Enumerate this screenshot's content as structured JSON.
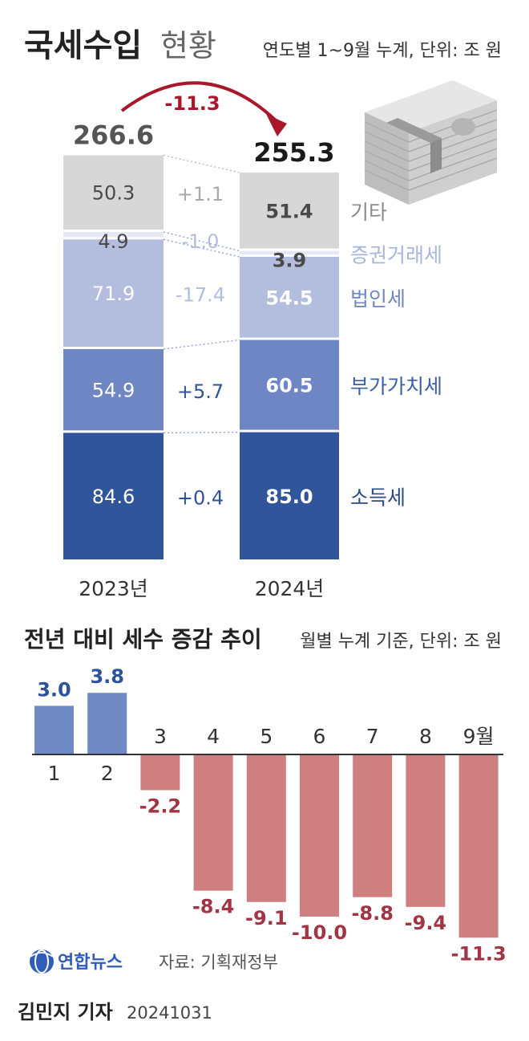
{
  "header": {
    "title_bold": "국세수입",
    "title_light": "현황",
    "subtitle": "연도별 1~9월 누계, 단위: 조 원"
  },
  "colors": {
    "other": "#d7d7d7",
    "securities": "#e3e8f4",
    "corporate": "#b3bede",
    "vat": "#6e86c3",
    "income": "#30559a",
    "positive_bar": "#6f89c4",
    "negative_bar": "#cf7f80",
    "positive_text": "#2f5398",
    "negative_text": "#a23545",
    "arrow": "#a8182a",
    "label_other": "#8a8a8a",
    "label_securities": "#a9b6d8",
    "label_corporate": "#6f86c2",
    "label_vat": "#3b5fa6",
    "label_income": "#2a4a8a"
  },
  "chart_data": [
    {
      "type": "bar",
      "stacked": true,
      "categories": [
        "2023년",
        "2024년"
      ],
      "totals": [
        "266.6",
        "255.3"
      ],
      "series": [
        {
          "name": "소득세",
          "values": [
            84.6,
            85.0
          ],
          "labels": [
            "84.6",
            "85.0"
          ],
          "change": "+0.4"
        },
        {
          "name": "부가가치세",
          "values": [
            54.9,
            60.5
          ],
          "labels": [
            "54.9",
            "60.5"
          ],
          "change": "+5.7"
        },
        {
          "name": "법인세",
          "values": [
            71.9,
            54.5
          ],
          "labels": [
            "71.9",
            "54.5"
          ],
          "change": "-17.4"
        },
        {
          "name": "증권거래세",
          "values": [
            4.9,
            3.9
          ],
          "labels": [
            "4.9",
            "3.9"
          ],
          "change": "-1.0"
        },
        {
          "name": "기타",
          "values": [
            50.3,
            51.4
          ],
          "labels": [
            "50.3",
            "51.4"
          ],
          "change": "+1.1"
        }
      ],
      "difference": "-11.3"
    },
    {
      "type": "bar",
      "title": "전년 대비 세수 증감 추이",
      "subtitle": "월별 누계 기준, 단위: 조 원",
      "categories": [
        "1",
        "2",
        "3",
        "4",
        "5",
        "6",
        "7",
        "8",
        "9월"
      ],
      "values": [
        3.0,
        3.8,
        -2.2,
        -8.4,
        -9.1,
        -10.0,
        -8.8,
        -9.4,
        -11.3
      ],
      "labels": [
        "3.0",
        "3.8",
        "-2.2",
        "-8.4",
        "-9.1",
        "-10.0",
        "-8.8",
        "-9.4",
        "-11.3"
      ]
    }
  ],
  "footer": {
    "logo_text": "연합뉴스",
    "source": "자료: 기획재정부",
    "credit": "김민지 기자",
    "date": "20241031"
  }
}
